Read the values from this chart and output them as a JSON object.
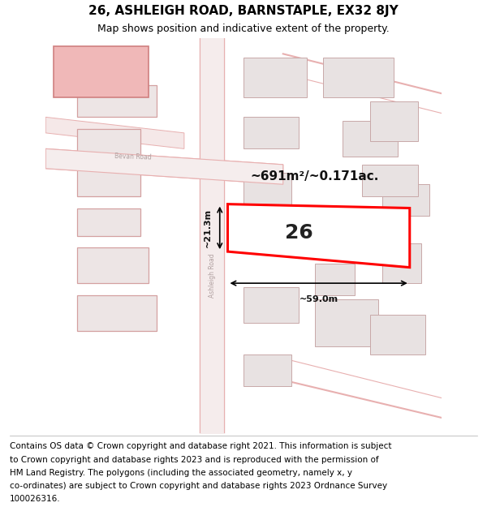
{
  "title": "26, ASHLEIGH ROAD, BARNSTAPLE, EX32 8JY",
  "subtitle": "Map shows position and indicative extent of the property.",
  "footer_lines": [
    "Contains OS data © Crown copyright and database right 2021. This information is subject",
    "to Crown copyright and database rights 2023 and is reproduced with the permission of",
    "HM Land Registry. The polygons (including the associated geometry, namely x, y",
    "co-ordinates) are subject to Crown copyright and database rights 2023 Ordnance Survey",
    "100026316."
  ],
  "bg_color": "#ffffff",
  "road_edge_color": "#e8b0b0",
  "highlight_color": "#ff0000",
  "highlight_fill": "#ffffff",
  "area_text": "~691m²/~0.171ac.",
  "label": "26",
  "dim_width": "~59.0m",
  "dim_height": "~21.3m",
  "title_fontsize": 11,
  "subtitle_fontsize": 9,
  "footer_fontsize": 7.5
}
